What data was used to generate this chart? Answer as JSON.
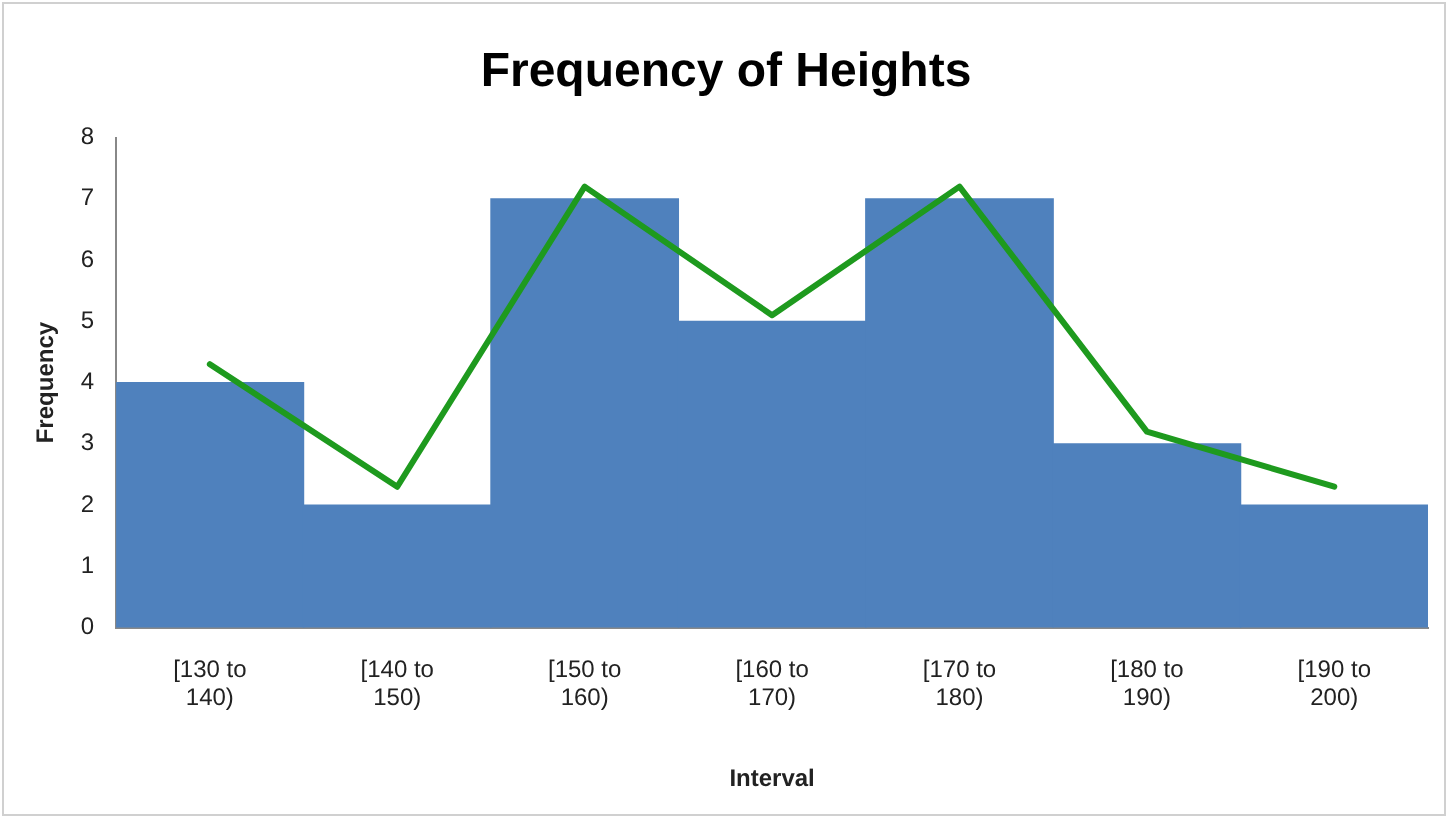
{
  "chart_data": {
    "type": "bar",
    "title": "Frequency of Heights",
    "xlabel": "Interval",
    "ylabel": "Frequency",
    "categories": [
      "[130 to 140)",
      "[140 to 150)",
      "[150 to 160)",
      "[160 to 170)",
      "[170 to 180)",
      "[180 to 190)",
      "[190 to 200)"
    ],
    "series": [
      {
        "color": "#4f81bd",
        "values": [
          4,
          2,
          7,
          5,
          7,
          3,
          2
        ]
      },
      {
        "type": "line",
        "color": "#1e9a1e",
        "values": [
          4.3,
          2.3,
          7.2,
          5.1,
          7.2,
          3.2,
          2.3
        ]
      }
    ],
    "ylim": [
      0,
      8
    ],
    "yticks": [
      0,
      1,
      2,
      3,
      4,
      5,
      6,
      7,
      8
    ],
    "grid": false,
    "legend": false,
    "marker": "none"
  }
}
